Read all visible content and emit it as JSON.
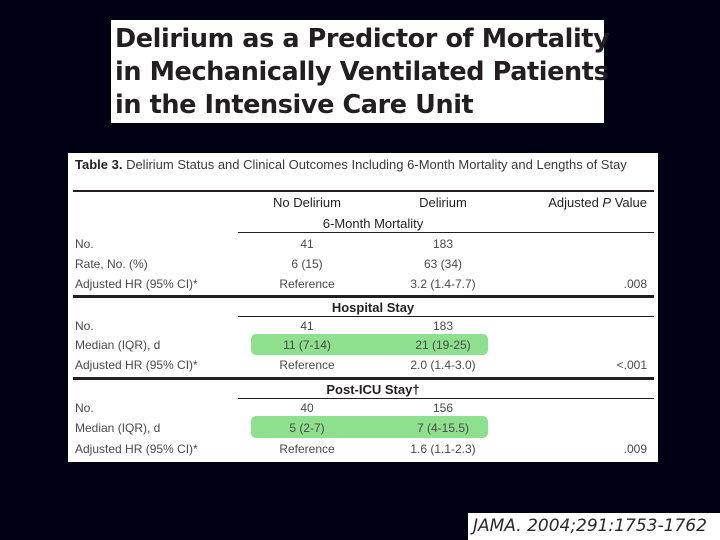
{
  "slide": {
    "title_lines": [
      "Delirium as a Predictor of Mortality",
      "in Mechanically Ventilated Patients",
      "in the Intensive Care Unit"
    ],
    "citation": "JAMA. 2004;291:1753-1762"
  },
  "table": {
    "caption_label": "Table 3.",
    "caption_text": " Delirium Status and Clinical Outcomes Including 6-Month Mortality and Lengths of Stay",
    "headers": {
      "no_delirium": "No Delirium",
      "delirium": "Delirium",
      "p_prefix": "Adjusted ",
      "p_italic": "P",
      "p_suffix": " Value"
    },
    "sections": [
      {
        "title": "6-Month Mortality",
        "rows": [
          {
            "label": "No.",
            "no_delirium": "41",
            "delirium": "183",
            "p": ""
          },
          {
            "label": "Rate, No. (%)",
            "no_delirium": "6 (15)",
            "delirium": "63 (34)",
            "p": ""
          },
          {
            "label": "Adjusted HR (95% CI)*",
            "no_delirium": "Reference",
            "delirium": "3.2 (1.4-7.7)",
            "p": ".008"
          }
        ]
      },
      {
        "title": "Hospital Stay",
        "rows": [
          {
            "label": "No.",
            "no_delirium": "41",
            "delirium": "183",
            "p": ""
          },
          {
            "label": "Median (IQR), d",
            "no_delirium": "11 (7-14)",
            "delirium": "21 (19-25)",
            "p": ""
          },
          {
            "label": "Adjusted HR (95% CI)*",
            "no_delirium": "Reference",
            "delirium": "2.0 (1.4-3.0)",
            "p": "<.001"
          }
        ]
      },
      {
        "title": "Post-ICU Stay†",
        "rows": [
          {
            "label": "No.",
            "no_delirium": "40",
            "delirium": "156",
            "p": ""
          },
          {
            "label": "Median (IQR), d",
            "no_delirium": "5 (2-7)",
            "delirium": "7 (4-15.5)",
            "p": ""
          },
          {
            "label": "Adjusted HR (95% CI)*",
            "no_delirium": "Reference",
            "delirium": "1.6 (1.1-2.3)",
            "p": ".009"
          }
        ]
      }
    ],
    "highlight_color": "#8ee08e"
  }
}
